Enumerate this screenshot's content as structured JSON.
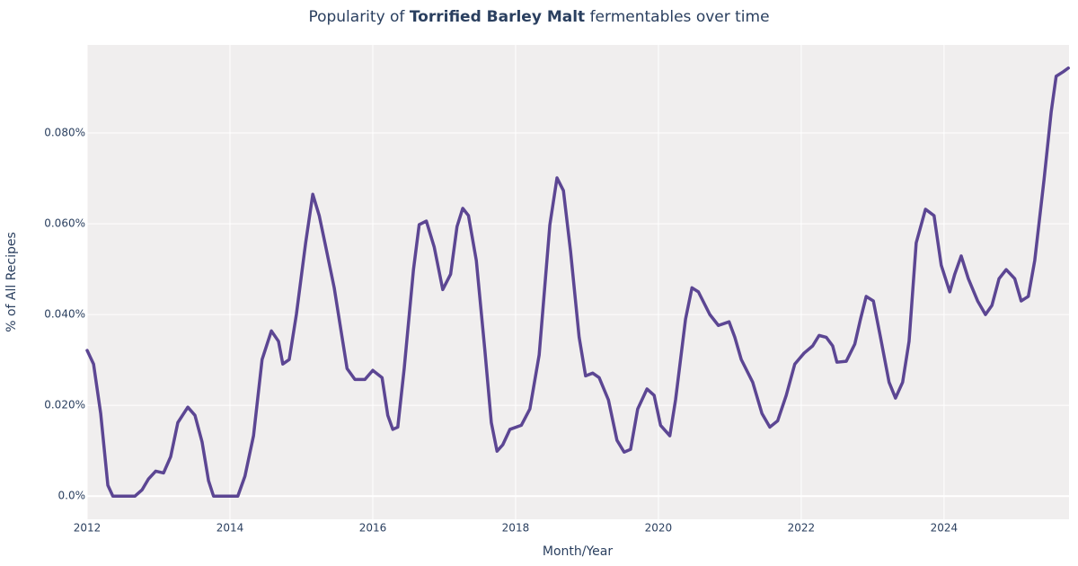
{
  "chart_data": {
    "type": "line",
    "title": {
      "before": "Popularity of ",
      "bold": "Torrified Barley Malt",
      "after": " fermentables over time"
    },
    "x_label": "Month/Year",
    "y_label": "% of All Recipes",
    "xlim": [
      2012,
      2025.75
    ],
    "xticks": [
      2012,
      2014,
      2016,
      2018,
      2020,
      2022,
      2024
    ],
    "ylim": [
      -0.0051,
      0.0994
    ],
    "yticks": [
      {
        "value": 0,
        "label": "0.0%"
      },
      {
        "value": 0.02,
        "label": "0.020%"
      },
      {
        "value": 0.04,
        "label": "0.040%"
      },
      {
        "value": 0.06,
        "label": "0.060%"
      },
      {
        "value": 0.08,
        "label": "0.080%"
      }
    ],
    "grid": true,
    "background": "#f0eeee",
    "series": [
      {
        "color": "#5c4693",
        "x": [
          2012.0,
          2012.09,
          2012.19,
          2012.29,
          2012.36,
          2012.67,
          2012.77,
          2012.86,
          2012.96,
          2013.07,
          2013.17,
          2013.27,
          2013.41,
          2013.51,
          2013.61,
          2013.7,
          2013.77,
          2014.11,
          2014.21,
          2014.33,
          2014.45,
          2014.58,
          2014.68,
          2014.74,
          2014.83,
          2014.93,
          2015.06,
          2015.16,
          2015.25,
          2015.33,
          2015.46,
          2015.56,
          2015.64,
          2015.75,
          2015.89,
          2016.0,
          2016.13,
          2016.21,
          2016.28,
          2016.35,
          2016.44,
          2016.57,
          2016.65,
          2016.75,
          2016.86,
          2016.98,
          2017.09,
          2017.18,
          2017.26,
          2017.34,
          2017.45,
          2017.57,
          2017.66,
          2017.74,
          2017.82,
          2017.92,
          2018.08,
          2018.2,
          2018.33,
          2018.48,
          2018.58,
          2018.67,
          2018.77,
          2018.89,
          2018.98,
          2019.08,
          2019.17,
          2019.3,
          2019.42,
          2019.52,
          2019.61,
          2019.71,
          2019.84,
          2019.94,
          2020.03,
          2020.16,
          2020.24,
          2020.38,
          2020.47,
          2020.56,
          2020.72,
          2020.84,
          2020.99,
          2021.07,
          2021.16,
          2021.32,
          2021.45,
          2021.56,
          2021.67,
          2021.79,
          2021.91,
          2022.04,
          2022.16,
          2022.25,
          2022.35,
          2022.44,
          2022.5,
          2022.63,
          2022.75,
          2022.83,
          2022.91,
          2023.01,
          2023.11,
          2023.23,
          2023.32,
          2023.42,
          2023.51,
          2023.61,
          2023.74,
          2023.86,
          2023.96,
          2024.08,
          2024.15,
          2024.24,
          2024.34,
          2024.47,
          2024.58,
          2024.67,
          2024.77,
          2024.87,
          2024.99,
          2025.08,
          2025.18,
          2025.27,
          2025.4,
          2025.5,
          2025.57,
          2025.67,
          2025.74
        ],
        "values": [
          0.0321,
          0.0291,
          0.0182,
          0.0024,
          0,
          0,
          0.0014,
          0.0038,
          0.0055,
          0.0051,
          0.0087,
          0.0162,
          0.0196,
          0.0178,
          0.0119,
          0.0034,
          0,
          0,
          0.0044,
          0.0133,
          0.0301,
          0.0364,
          0.0341,
          0.0291,
          0.0301,
          0.04,
          0.0558,
          0.0665,
          0.0618,
          0.0558,
          0.0459,
          0.036,
          0.0281,
          0.0257,
          0.0257,
          0.0277,
          0.0261,
          0.0178,
          0.0147,
          0.0152,
          0.0281,
          0.0499,
          0.0598,
          0.0606,
          0.0549,
          0.0455,
          0.0489,
          0.0594,
          0.0634,
          0.0618,
          0.0519,
          0.0321,
          0.0162,
          0.0099,
          0.0113,
          0.0147,
          0.0156,
          0.0192,
          0.0311,
          0.0598,
          0.0701,
          0.0673,
          0.0539,
          0.035,
          0.0265,
          0.0271,
          0.0261,
          0.0212,
          0.0123,
          0.0097,
          0.0103,
          0.0192,
          0.0236,
          0.0222,
          0.0156,
          0.0133,
          0.0212,
          0.039,
          0.0459,
          0.045,
          0.04,
          0.0376,
          0.0384,
          0.035,
          0.0301,
          0.0251,
          0.0182,
          0.0152,
          0.0166,
          0.0222,
          0.0291,
          0.0315,
          0.0331,
          0.0354,
          0.035,
          0.0331,
          0.0295,
          0.0297,
          0.0335,
          0.039,
          0.044,
          0.043,
          0.035,
          0.0251,
          0.0216,
          0.0251,
          0.0341,
          0.0558,
          0.0632,
          0.0618,
          0.0509,
          0.045,
          0.0489,
          0.0529,
          0.0479,
          0.043,
          0.04,
          0.042,
          0.0479,
          0.0499,
          0.0479,
          0.043,
          0.044,
          0.0519,
          0.0697,
          0.0846,
          0.0925,
          0.0935,
          0.0943
        ]
      }
    ]
  }
}
